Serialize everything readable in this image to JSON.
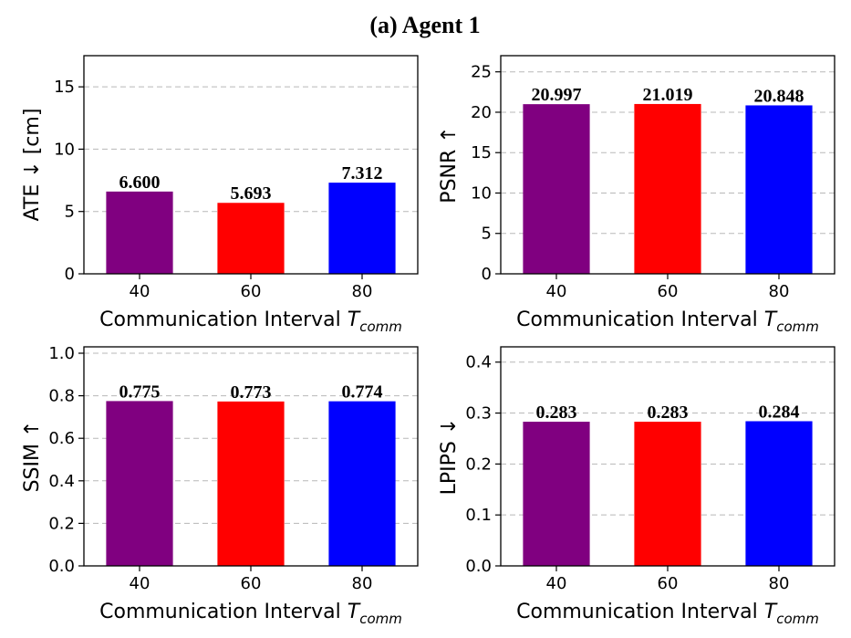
{
  "figure_title": "(a) Agent 1",
  "chart_data": [
    {
      "type": "bar",
      "categories": [
        "40",
        "60",
        "80"
      ],
      "values": [
        6.6,
        5.693,
        7.312
      ],
      "value_labels": [
        "6.600",
        "5.693",
        "7.312"
      ],
      "colors": [
        "#800080",
        "#ff0000",
        "#0000ff"
      ],
      "xlabel": "Communication Interval ",
      "xlabel_math": "T",
      "xlabel_sub": "comm",
      "ylabel": "ATE ↓  [cm]",
      "ylim": [
        0,
        17.5
      ],
      "yticks": [
        0,
        5,
        10,
        15
      ],
      "ytick_labels": [
        "0",
        "5",
        "10",
        "15"
      ],
      "grid": true
    },
    {
      "type": "bar",
      "categories": [
        "40",
        "60",
        "80"
      ],
      "values": [
        20.997,
        21.019,
        20.848
      ],
      "value_labels": [
        "20.997",
        "21.019",
        "20.848"
      ],
      "colors": [
        "#800080",
        "#ff0000",
        "#0000ff"
      ],
      "xlabel": "Communication Interval ",
      "xlabel_math": "T",
      "xlabel_sub": "comm",
      "ylabel": "PSNR ↑",
      "ylim": [
        0,
        27
      ],
      "yticks": [
        0,
        5,
        10,
        15,
        20,
        25
      ],
      "ytick_labels": [
        "0",
        "5",
        "10",
        "15",
        "20",
        "25"
      ],
      "grid": true
    },
    {
      "type": "bar",
      "categories": [
        "40",
        "60",
        "80"
      ],
      "values": [
        0.775,
        0.773,
        0.774
      ],
      "value_labels": [
        "0.775",
        "0.773",
        "0.774"
      ],
      "colors": [
        "#800080",
        "#ff0000",
        "#0000ff"
      ],
      "xlabel": "Communication Interval ",
      "xlabel_math": "T",
      "xlabel_sub": "comm",
      "ylabel": "SSIM ↑",
      "ylim": [
        0,
        1.03
      ],
      "yticks": [
        0,
        0.2,
        0.4,
        0.6,
        0.8,
        1.0
      ],
      "ytick_labels": [
        "0.0",
        "0.2",
        "0.4",
        "0.6",
        "0.8",
        "1.0"
      ],
      "grid": true
    },
    {
      "type": "bar",
      "categories": [
        "40",
        "60",
        "80"
      ],
      "values": [
        0.283,
        0.283,
        0.284
      ],
      "value_labels": [
        "0.283",
        "0.283",
        "0.284"
      ],
      "colors": [
        "#800080",
        "#ff0000",
        "#0000ff"
      ],
      "xlabel": "Communication Interval ",
      "xlabel_math": "T",
      "xlabel_sub": "comm",
      "ylabel": "LPIPS ↓",
      "ylim": [
        0,
        0.43
      ],
      "yticks": [
        0,
        0.1,
        0.2,
        0.3,
        0.4
      ],
      "ytick_labels": [
        "0.0",
        "0.1",
        "0.2",
        "0.3",
        "0.4"
      ],
      "grid": true
    }
  ]
}
